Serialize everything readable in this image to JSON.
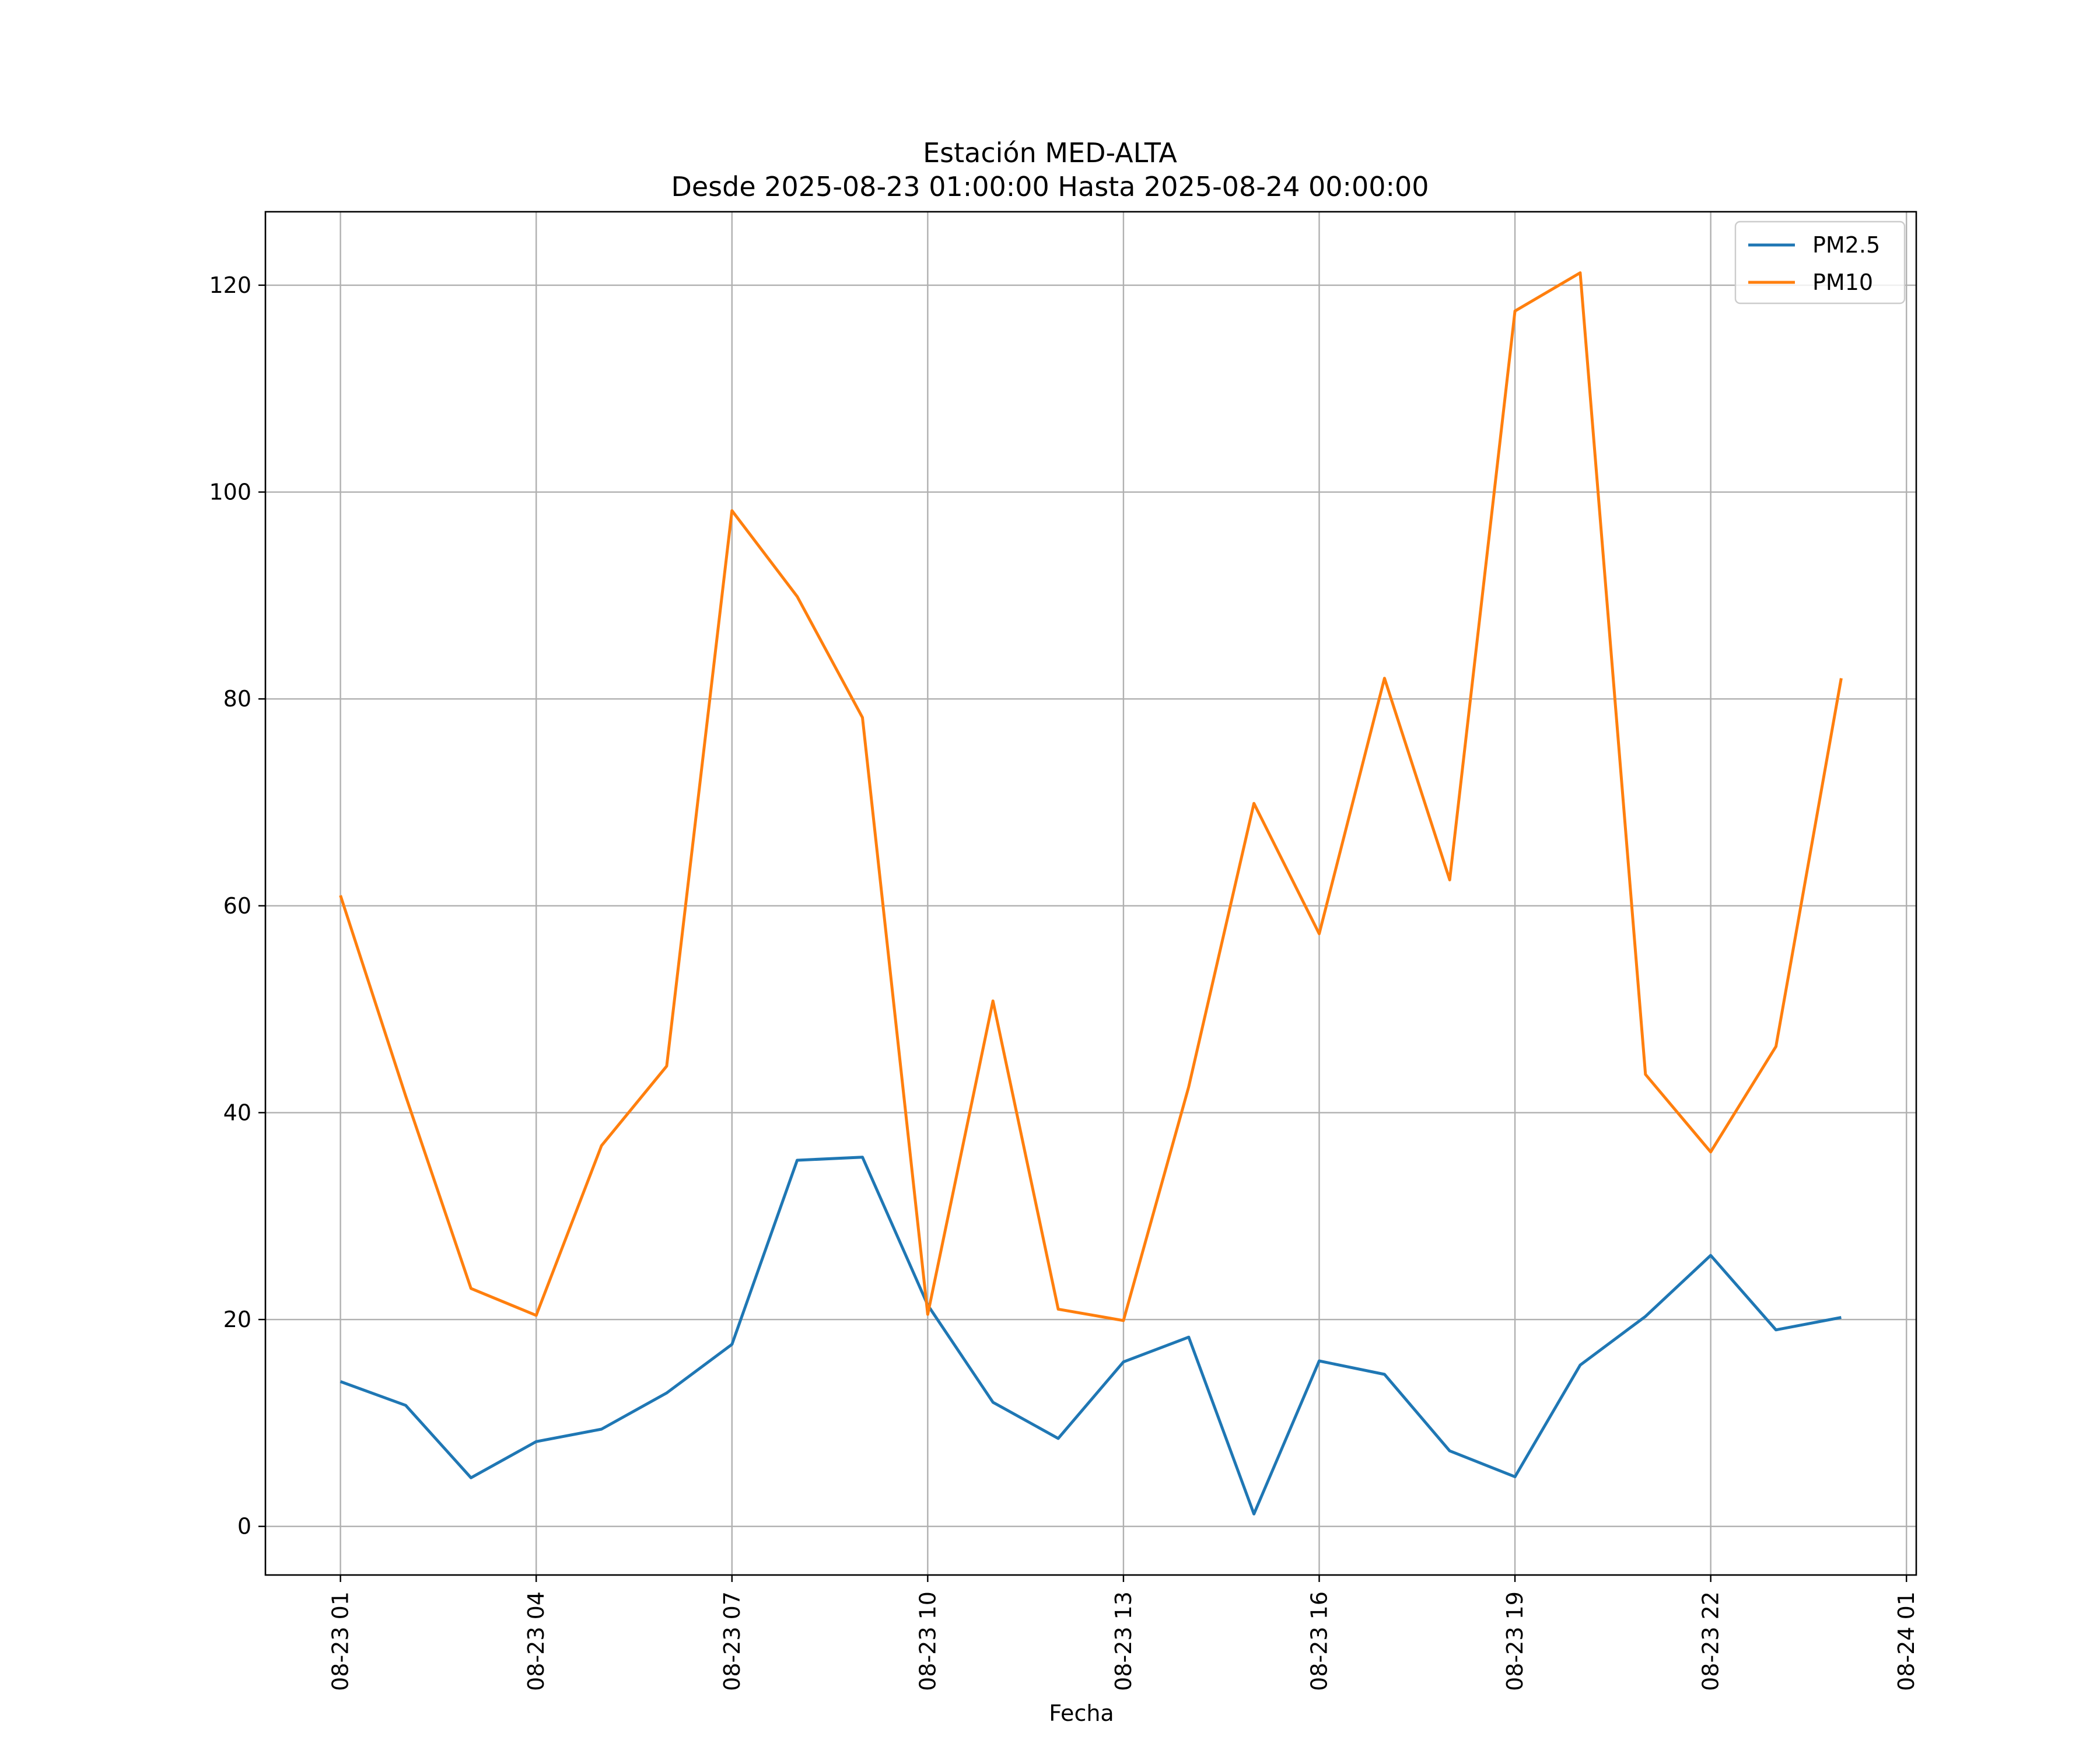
{
  "chart_data": {
    "type": "line",
    "title": "Estación MED-ALTA",
    "subtitle": "Desde 2025-08-23 01:00:00 Hasta 2025-08-24 00:00:00",
    "xlabel": "Fecha",
    "ylabel": "",
    "x": [
      "08-23 01",
      "08-23 02",
      "08-23 03",
      "08-23 04",
      "08-23 05",
      "08-23 06",
      "08-23 07",
      "08-23 08",
      "08-23 09",
      "08-23 10",
      "08-23 11",
      "08-23 12",
      "08-23 13",
      "08-23 14",
      "08-23 15",
      "08-23 16",
      "08-23 17",
      "08-23 18",
      "08-23 19",
      "08-23 20",
      "08-23 21",
      "08-23 22",
      "08-23 23",
      "08-24 00"
    ],
    "x_hours": [
      1,
      2,
      3,
      4,
      5,
      6,
      7,
      8,
      9,
      10,
      11,
      12,
      13,
      14,
      15,
      16,
      17,
      18,
      19,
      20,
      21,
      22,
      23,
      24
    ],
    "series": [
      {
        "name": "PM2.5",
        "color": "#1f77b4",
        "values": [
          14.0,
          11.7,
          4.7,
          8.2,
          9.4,
          12.9,
          17.6,
          35.4,
          35.7,
          21.4,
          12.0,
          8.5,
          15.9,
          18.3,
          1.2,
          16.0,
          14.7,
          7.3,
          4.8,
          15.6,
          20.3,
          26.2,
          19.0,
          20.2
        ]
      },
      {
        "name": "PM10",
        "color": "#ff7f0e",
        "values": [
          61.0,
          41.6,
          23.0,
          20.4,
          36.8,
          44.5,
          98.2,
          89.9,
          78.2,
          20.5,
          50.8,
          21.0,
          19.9,
          42.5,
          69.9,
          57.3,
          82.0,
          62.5,
          117.5,
          121.2,
          43.7,
          36.2,
          46.4,
          82.0
        ]
      }
    ],
    "ylim": [
      -4.7,
      127.1
    ],
    "xlim_hours": [
      -0.15,
      25.15
    ],
    "yticks": [
      0,
      20,
      40,
      60,
      80,
      100,
      120
    ],
    "xticks": [
      {
        "hour": 1,
        "label": "08-23 01"
      },
      {
        "hour": 4,
        "label": "08-23 04"
      },
      {
        "hour": 7,
        "label": "08-23 07"
      },
      {
        "hour": 10,
        "label": "08-23 10"
      },
      {
        "hour": 13,
        "label": "08-23 13"
      },
      {
        "hour": 16,
        "label": "08-23 16"
      },
      {
        "hour": 19,
        "label": "08-23 19"
      },
      {
        "hour": 22,
        "label": "08-23 22"
      },
      {
        "hour": 25,
        "label": "08-24 01"
      }
    ],
    "grid": true,
    "legend_position": "top-right"
  }
}
